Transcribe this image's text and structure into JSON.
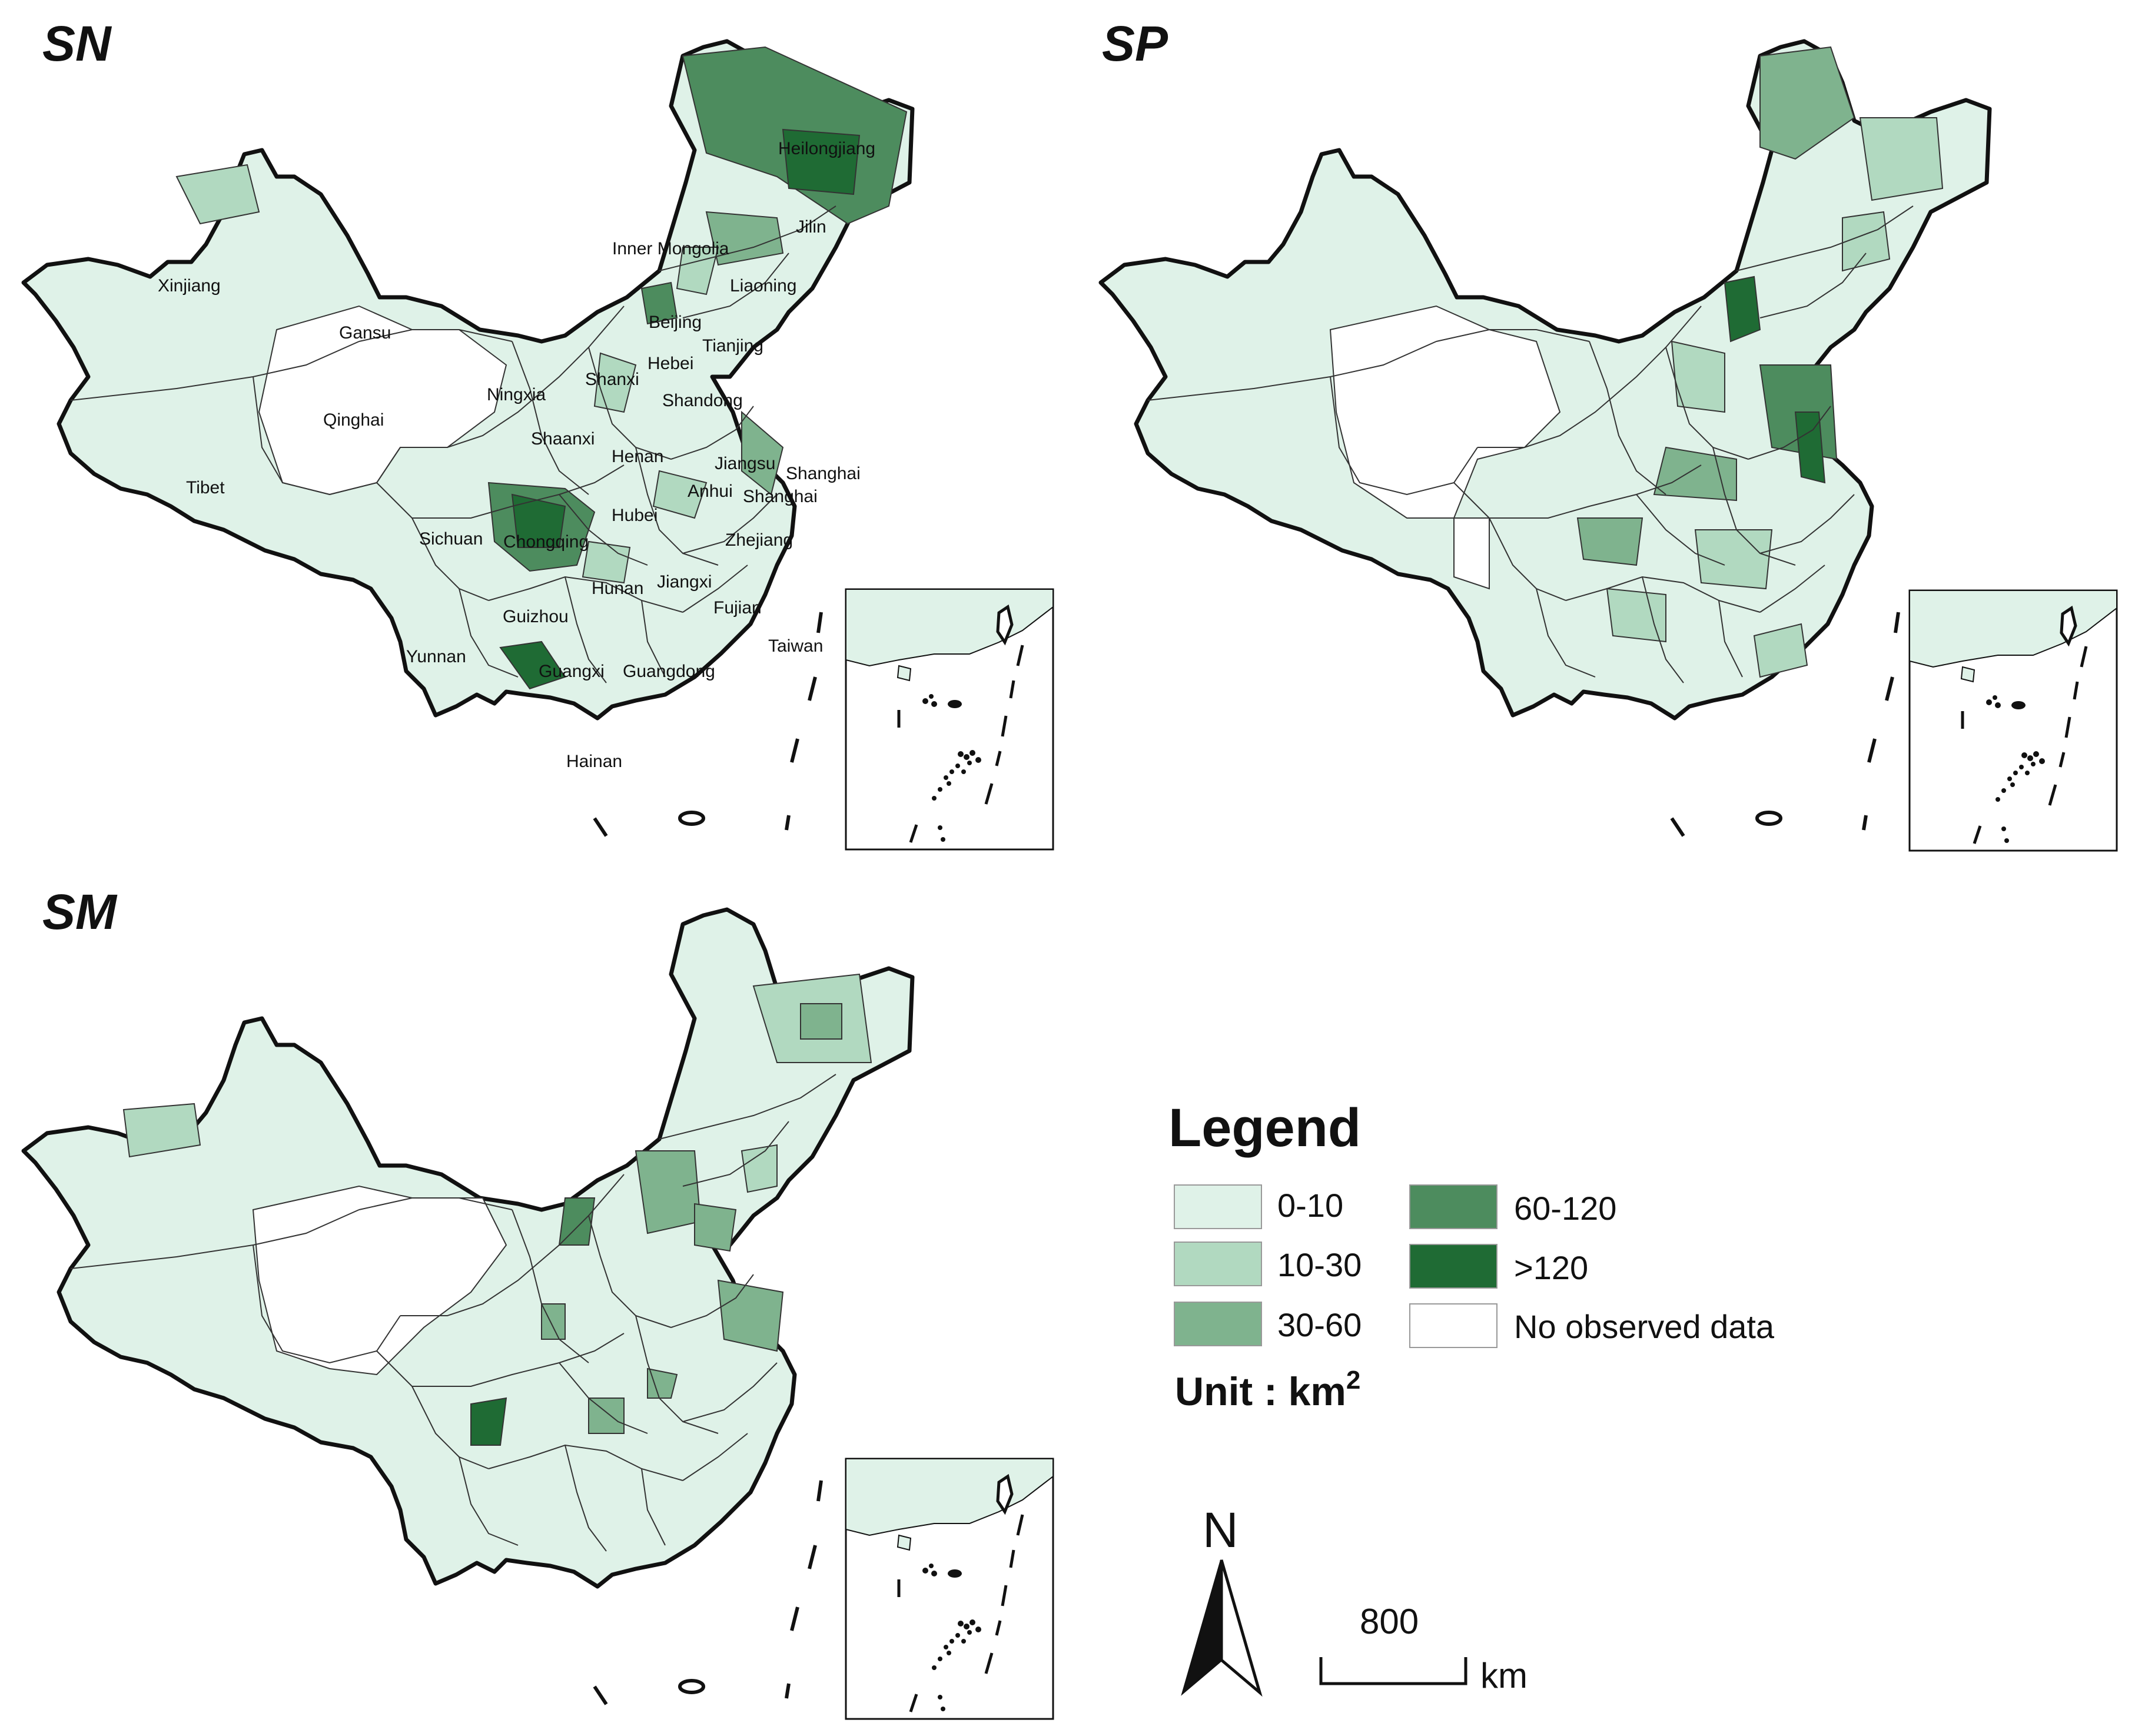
{
  "panels": [
    {
      "id": "SN",
      "title": "SN"
    },
    {
      "id": "SP",
      "title": "SP"
    },
    {
      "id": "SM",
      "title": "SM"
    }
  ],
  "provinces": [
    "Heilongjiang",
    "Jilin",
    "Inner Mongolia",
    "Liaoning",
    "Xinjiang",
    "Gansu",
    "Beijing",
    "Tianjing",
    "Hebei",
    "Qinghai",
    "Ningxia",
    "Shanxi",
    "Shandong",
    "Shaanxi",
    "Henan",
    "Jiangsu",
    "Shanghai",
    "Tibet",
    "Anhui",
    "Shanghai",
    "Hubei",
    "Sichuan",
    "Chongqing",
    "Zhejiang",
    "Hunan",
    "Jiangxi",
    "Guizhou",
    "Fujian",
    "Taiwan",
    "Yunnan",
    "Guangxi",
    "Guangdong",
    "Hainan"
  ],
  "legend": {
    "title": "Legend",
    "classes": [
      {
        "label": "0-10",
        "color": "#dff2e8"
      },
      {
        "label": "10-30",
        "color": "#b1d9c0"
      },
      {
        "label": "30-60",
        "color": "#7fb38e"
      },
      {
        "label": "60-120",
        "color": "#4d8c5e"
      },
      {
        "label": ">120",
        "color": "#1f6b34"
      },
      {
        "label": "No observed data",
        "color": "#ffffff"
      }
    ],
    "unit_prefix": "Unit : km",
    "unit_sup": "2"
  },
  "north_arrow": {
    "label": "N"
  },
  "scale_bar": {
    "value": "800",
    "unit": "km"
  },
  "colors": {
    "border": "#111111",
    "internal": "#333333"
  }
}
